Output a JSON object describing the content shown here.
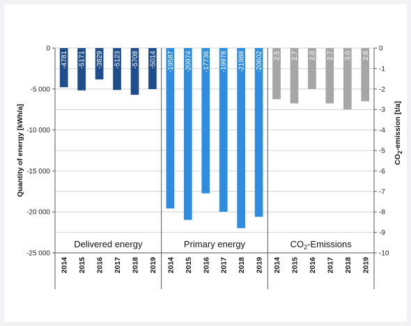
{
  "chart_data": {
    "type": "bar",
    "x": [
      "2014",
      "2015",
      "2016",
      "2017",
      "2018",
      "2019"
    ],
    "series": [
      {
        "name": "Delivered energy",
        "values": [
          -4781,
          -5171,
          -3829,
          -5123,
          -5708,
          -5014
        ],
        "labels": [
          "-4781",
          "-5171",
          "-3829",
          "-5123",
          "-5708",
          "-5014"
        ],
        "axis": "left",
        "color": "#1f4e8c"
      },
      {
        "name": "Primary energy",
        "values": [
          -19587,
          -20974,
          -17736,
          -19978,
          -21988,
          -20602
        ],
        "labels": [
          "-19587",
          "-20974",
          "-17736",
          "-19978",
          "-21988",
          "-20602"
        ],
        "axis": "left",
        "color": "#2f8de0"
      },
      {
        "name": "CO₂-Emissions",
        "values": [
          -2.5,
          -2.7,
          -2.0,
          -2.7,
          -3.0,
          -2.6
        ],
        "labels": [
          "2.5",
          "2.7",
          "2.0",
          "2.7",
          "3.0",
          "2.6"
        ],
        "axis": "right",
        "color": "#a6a6a6"
      }
    ],
    "group_labels": [
      "Delivered energy",
      "Primary energy",
      "CO₂-Emissions"
    ],
    "y_left": {
      "label": "Quantity of energy  [kWh/a]",
      "ylim": [
        -25000,
        0
      ],
      "ticks": [
        0,
        -5000,
        -10000,
        -15000,
        -20000,
        -25000
      ],
      "tick_labels": [
        "0",
        "-5 000",
        "-10 000",
        "-15 000",
        "-20 000",
        "-25 000"
      ]
    },
    "y_right": {
      "label": "CO₂-emission [t/a]",
      "ylim": [
        -10,
        0
      ],
      "ticks": [
        0,
        -1,
        -2,
        -3,
        -4,
        -5,
        -6,
        -7,
        -8,
        -9,
        -10
      ],
      "tick_labels": [
        "0",
        "-1",
        "-2",
        "-3",
        "-4",
        "-5",
        "-6",
        "-7",
        "-8",
        "-9",
        "-10"
      ]
    },
    "grid": true
  }
}
